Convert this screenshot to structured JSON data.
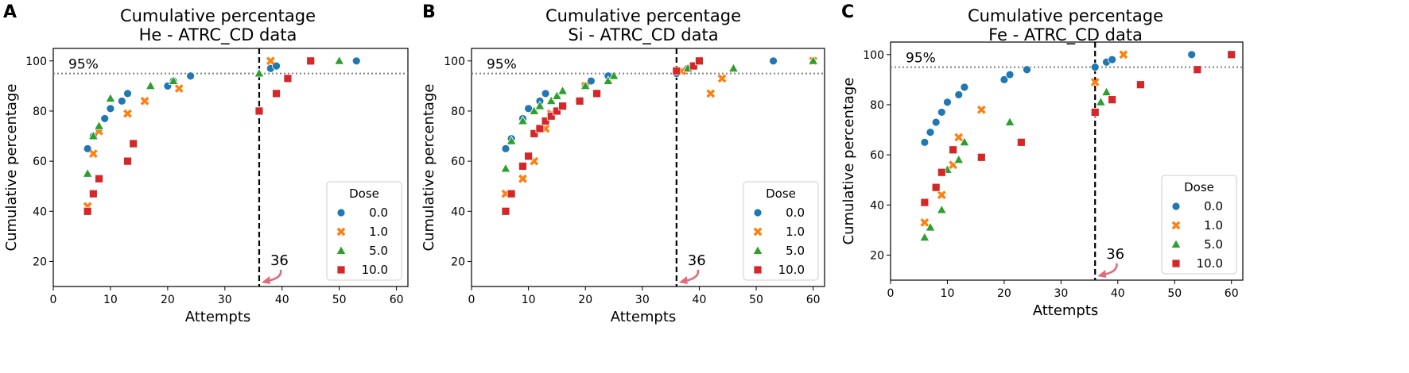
{
  "figure": {
    "legend_title": "Dose",
    "x_axis_label": "Attempts",
    "y_axis_label": "Cumulative percentage",
    "ref_line_label": "95%",
    "vline_label": "36",
    "colors": {
      "0.0": "#1f77b4",
      "1.0": "#ff7f0e",
      "5.0": "#2ca02c",
      "10.0": "#d62728"
    },
    "markers": {
      "0.0": "circle",
      "1.0": "x",
      "5.0": "triangle",
      "10.0": "square"
    }
  },
  "chart_data": [
    {
      "type": "scatter",
      "panel_letter": "A",
      "title": "Cumulative percentage\nHe - ATRC_CD data",
      "xlabel": "Attempts",
      "ylabel": "Cumulative percentage",
      "xlim": [
        0,
        62
      ],
      "ylim": [
        10,
        105
      ],
      "xticks": [
        0,
        10,
        20,
        30,
        40,
        50,
        60
      ],
      "yticks": [
        20,
        40,
        60,
        80,
        100
      ],
      "hline": 95,
      "hline_label": "95%",
      "vline": 36,
      "vline_label": "36",
      "legend_title": "Dose",
      "legend_position": "lower-right",
      "series": [
        {
          "name": "0.0",
          "x": [
            6,
            7,
            8,
            9,
            10,
            12,
            13,
            20,
            21,
            24,
            38,
            39,
            53
          ],
          "y": [
            65,
            70,
            73,
            77,
            81,
            84,
            87,
            90,
            92,
            94,
            97,
            98,
            100
          ]
        },
        {
          "name": "1.0",
          "x": [
            6,
            7,
            8,
            13,
            16,
            22,
            38
          ],
          "y": [
            42,
            63,
            72,
            79,
            84,
            89,
            100
          ]
        },
        {
          "name": "5.0",
          "x": [
            6,
            7,
            8,
            10,
            17,
            21,
            36,
            50
          ],
          "y": [
            55,
            70,
            74,
            85,
            90,
            92,
            95,
            100
          ]
        },
        {
          "name": "10.0",
          "x": [
            6,
            7,
            8,
            13,
            14,
            36,
            39,
            41,
            45
          ],
          "y": [
            40,
            47,
            53,
            60,
            67,
            80,
            87,
            93,
            100
          ]
        }
      ]
    },
    {
      "type": "scatter",
      "panel_letter": "B",
      "title": "Cumulative percentage\nSi - ATRC_CD data",
      "xlabel": "Attempts",
      "ylabel": "Cumulative percentage",
      "xlim": [
        0,
        62
      ],
      "ylim": [
        10,
        105
      ],
      "xticks": [
        0,
        10,
        20,
        30,
        40,
        50,
        60
      ],
      "yticks": [
        20,
        40,
        60,
        80,
        100
      ],
      "hline": 95,
      "hline_label": "95%",
      "vline": 36,
      "vline_label": "36",
      "legend_title": "Dose",
      "legend_position": "lower-right",
      "series": [
        {
          "name": "0.0",
          "x": [
            6,
            7,
            9,
            10,
            12,
            13,
            20,
            21,
            24,
            36,
            38,
            53
          ],
          "y": [
            65,
            69,
            77,
            81,
            84,
            87,
            90,
            92,
            94,
            95,
            97,
            100
          ]
        },
        {
          "name": "1.0",
          "x": [
            6,
            9,
            11,
            13,
            14,
            20,
            37,
            42,
            44,
            60
          ],
          "y": [
            47,
            53,
            60,
            73,
            79,
            90,
            96,
            87,
            93,
            100
          ]
        },
        {
          "name": "5.0",
          "x": [
            6,
            7,
            9,
            11,
            12,
            14,
            15,
            16,
            20,
            24,
            25,
            38,
            46,
            60
          ],
          "y": [
            57,
            68,
            76,
            80,
            82,
            84,
            86,
            88,
            90,
            92,
            94,
            97,
            97,
            100
          ]
        },
        {
          "name": "10.0",
          "x": [
            6,
            7,
            9,
            10,
            11,
            12,
            13,
            14,
            15,
            16,
            19,
            22,
            36,
            39,
            40
          ],
          "y": [
            40,
            47,
            58,
            62,
            71,
            73,
            76,
            78,
            80,
            82,
            84,
            87,
            96,
            98,
            100
          ]
        }
      ]
    },
    {
      "type": "scatter",
      "panel_letter": "C",
      "title": "Cumulative percentage\nFe - ATRC_CD data",
      "xlabel": "Attempts",
      "ylabel": "Cumulative percentage",
      "xlim": [
        0,
        62
      ],
      "ylim": [
        10,
        105
      ],
      "xticks": [
        0,
        10,
        20,
        30,
        40,
        50,
        60
      ],
      "yticks": [
        20,
        40,
        60,
        80,
        100
      ],
      "hline": 95,
      "hline_label": "95%",
      "vline": 36,
      "vline_label": "36",
      "legend_title": "Dose",
      "legend_position": "lower-right",
      "series": [
        {
          "name": "0.0",
          "x": [
            6,
            7,
            8,
            9,
            10,
            12,
            13,
            20,
            21,
            24,
            36,
            38,
            39,
            53
          ],
          "y": [
            65,
            69,
            73,
            77,
            81,
            84,
            87,
            90,
            92,
            94,
            95,
            97,
            98,
            100
          ]
        },
        {
          "name": "1.0",
          "x": [
            6,
            9,
            11,
            12,
            16,
            36,
            41
          ],
          "y": [
            33,
            44,
            56,
            67,
            78,
            89,
            100
          ]
        },
        {
          "name": "5.0",
          "x": [
            6,
            7,
            9,
            10,
            12,
            13,
            21,
            37,
            38
          ],
          "y": [
            27,
            31,
            38,
            54,
            58,
            65,
            73,
            81,
            85
          ]
        },
        {
          "name": "10.0",
          "x": [
            6,
            8,
            9,
            11,
            16,
            23,
            36,
            39,
            44,
            54,
            60
          ],
          "y": [
            41,
            47,
            53,
            62,
            59,
            65,
            77,
            82,
            88,
            94,
            100
          ]
        }
      ]
    }
  ]
}
